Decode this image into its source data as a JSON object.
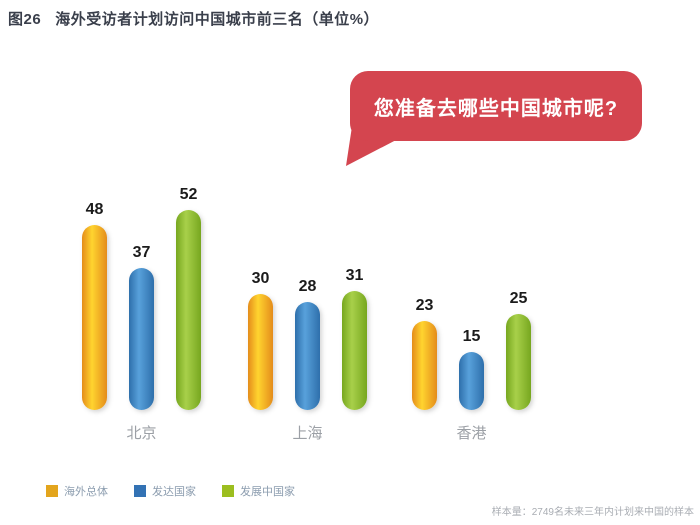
{
  "title": {
    "tag": "图26",
    "text": "海外受访者计划访问中国城市前三名（单位%）"
  },
  "speech_bubble": {
    "text": "您准备去哪些中国城市呢?",
    "bg_color": "#D4454F",
    "text_color": "#FFFFFF"
  },
  "chart_data": {
    "type": "bar",
    "title": "海外受访者计划访问中国城市前三名",
    "unit": "%",
    "categories": [
      "北京",
      "上海",
      "香港"
    ],
    "series": [
      {
        "name": "海外总体",
        "swatch": "#E3A51D",
        "gradient_edge": "#E48C1B",
        "gradient_center": "#FFD42F",
        "values": [
          48,
          30,
          23
        ]
      },
      {
        "name": "发达国家",
        "swatch": "#3372B4",
        "gradient_edge": "#2E6FAB",
        "gradient_center": "#58A1DB",
        "values": [
          37,
          28,
          15
        ]
      },
      {
        "name": "发展中国家",
        "swatch": "#9CBE1F",
        "gradient_edge": "#77A71F",
        "gradient_center": "#A8D04A",
        "values": [
          52,
          31,
          25
        ]
      }
    ],
    "ylim": [
      0,
      55
    ],
    "grid": false,
    "legend_position": "bottom-left",
    "value_labels": true
  },
  "footnote": "样本量：2749名未来三年内计划来中国的样本"
}
